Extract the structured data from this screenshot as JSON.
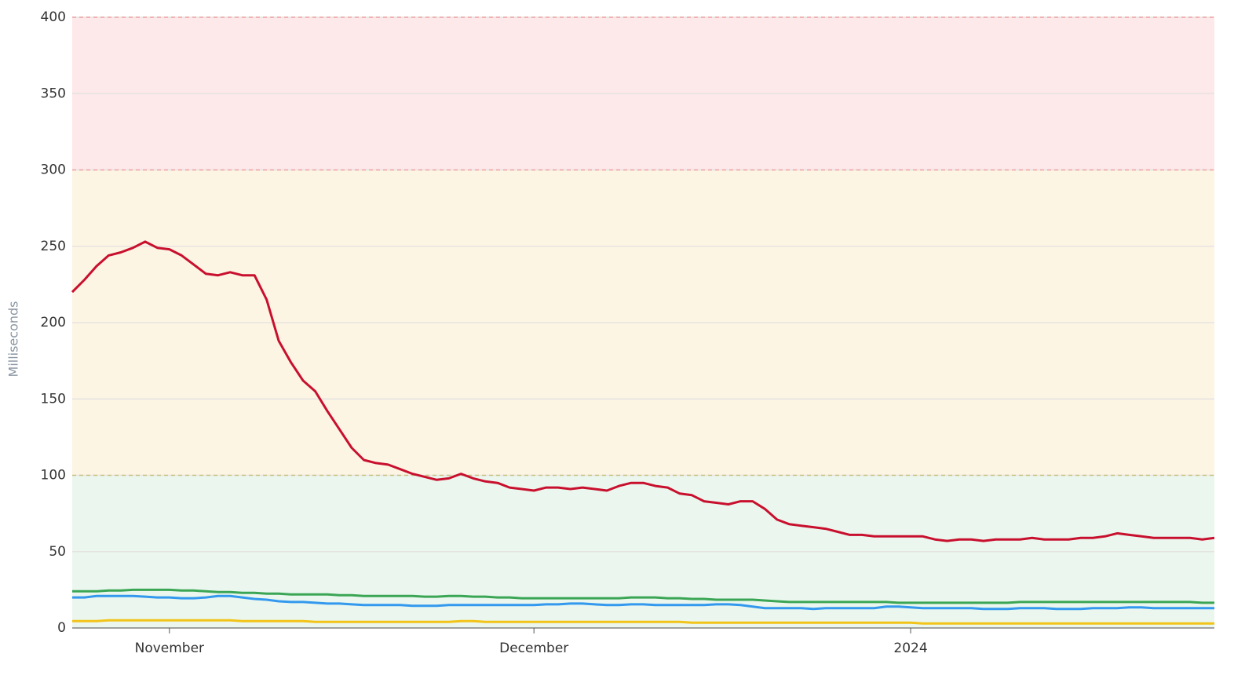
{
  "chart_data": {
    "type": "line",
    "y_label": "Milliseconds",
    "categories": [
      null,
      null,
      null,
      null,
      null,
      null,
      null,
      null,
      "November",
      null,
      null,
      null,
      null,
      null,
      null,
      null,
      null,
      null,
      null,
      null,
      null,
      null,
      null,
      null,
      null,
      null,
      null,
      null,
      null,
      null,
      null,
      null,
      null,
      null,
      null,
      null,
      null,
      null,
      "December",
      null,
      null,
      null,
      null,
      null,
      null,
      null,
      null,
      null,
      null,
      null,
      null,
      null,
      null,
      null,
      null,
      null,
      null,
      null,
      null,
      null,
      null,
      null,
      null,
      null,
      null,
      null,
      null,
      null,
      null,
      "2024",
      null,
      null,
      null,
      null,
      null,
      null,
      null,
      null,
      null,
      null,
      null,
      null,
      null,
      null,
      null,
      null,
      null,
      null,
      null,
      null,
      null,
      null,
      null,
      null,
      null
    ],
    "series": [
      {
        "color": "#c8102e",
        "values": [
          220,
          228,
          237,
          244,
          246,
          249,
          253,
          249,
          248,
          244,
          238,
          232,
          231,
          233,
          231,
          231,
          215,
          188,
          174,
          162,
          155,
          142,
          130,
          118,
          110,
          108,
          107,
          104,
          101,
          99,
          97,
          98,
          101,
          98,
          96,
          95,
          92,
          91,
          90,
          92,
          92,
          91,
          92,
          91,
          90,
          93,
          95,
          95,
          93,
          92,
          88,
          87,
          83,
          82,
          81,
          83,
          83,
          78,
          71,
          68,
          67,
          66,
          65,
          63,
          61,
          61,
          60,
          60,
          60,
          60,
          60,
          58,
          57,
          58,
          58,
          57,
          58,
          58,
          58,
          59,
          58,
          58,
          58,
          59,
          59,
          60,
          62,
          61,
          60,
          59,
          59,
          59,
          59,
          58,
          59
        ]
      },
      {
        "color": "#3aa655",
        "values": [
          24,
          24,
          24,
          24.5,
          24.5,
          25,
          25,
          25,
          25,
          24.5,
          24.5,
          24,
          23.5,
          23.5,
          23,
          23,
          22.5,
          22.5,
          22,
          22,
          22,
          22,
          21.5,
          21.5,
          21,
          21,
          21,
          21,
          21,
          20.5,
          20.5,
          21,
          21,
          20.5,
          20.5,
          20,
          20,
          19.5,
          19.5,
          19.5,
          19.5,
          19.5,
          19.5,
          19.5,
          19.5,
          19.5,
          20,
          20,
          20,
          19.5,
          19.5,
          19,
          19,
          18.5,
          18.5,
          18.5,
          18.5,
          18,
          17.5,
          17,
          17,
          17,
          17,
          17,
          17,
          17,
          17,
          17,
          16.5,
          16.5,
          16.5,
          16.5,
          16.5,
          16.5,
          16.5,
          16.5,
          16.5,
          16.5,
          17,
          17,
          17,
          17,
          17,
          17,
          17,
          17,
          17,
          17,
          17,
          17,
          17,
          17,
          17,
          16.5,
          16.5
        ]
      },
      {
        "color": "#3399ee",
        "values": [
          20,
          20,
          21,
          21,
          21,
          21,
          20.5,
          20,
          20,
          19.5,
          19.5,
          20,
          21,
          21,
          20,
          19,
          18.5,
          17.5,
          17,
          17,
          16.5,
          16,
          16,
          15.5,
          15,
          15,
          15,
          15,
          14.5,
          14.5,
          14.5,
          15,
          15,
          15,
          15,
          15,
          15,
          15,
          15,
          15.5,
          15.5,
          16,
          16,
          15.5,
          15,
          15,
          15.5,
          15.5,
          15,
          15,
          15,
          15,
          15,
          15.5,
          15.5,
          15,
          14,
          13,
          13,
          13,
          13,
          12.5,
          13,
          13,
          13,
          13,
          13,
          14,
          14,
          13.5,
          13,
          13,
          13,
          13,
          13,
          12.5,
          12.5,
          12.5,
          13,
          13,
          13,
          12.5,
          12.5,
          12.5,
          13,
          13,
          13,
          13.5,
          13.5,
          13,
          13,
          13,
          13,
          13,
          13
        ]
      },
      {
        "color": "#f2c318",
        "values": [
          4.5,
          4.5,
          4.5,
          5,
          5,
          5,
          5,
          5,
          5,
          5,
          5,
          5,
          5,
          5,
          4.5,
          4.5,
          4.5,
          4.5,
          4.5,
          4.5,
          4,
          4,
          4,
          4,
          4,
          4,
          4,
          4,
          4,
          4,
          4,
          4,
          4.5,
          4.5,
          4,
          4,
          4,
          4,
          4,
          4,
          4,
          4,
          4,
          4,
          4,
          4,
          4,
          4,
          4,
          4,
          4,
          3.5,
          3.5,
          3.5,
          3.5,
          3.5,
          3.5,
          3.5,
          3.5,
          3.5,
          3.5,
          3.5,
          3.5,
          3.5,
          3.5,
          3.5,
          3.5,
          3.5,
          3.5,
          3.5,
          3,
          3,
          3,
          3,
          3,
          3,
          3,
          3,
          3,
          3,
          3,
          3,
          3,
          3,
          3,
          3,
          3,
          3,
          3,
          3,
          3,
          3,
          3,
          3,
          3
        ]
      }
    ],
    "bands": [
      {
        "from": 0,
        "to": 100,
        "color": "#ebf7ee",
        "line_color": "#c8c080"
      },
      {
        "from": 100,
        "to": 300,
        "color": "#fdf5e4",
        "line_color": "#f0a0a0"
      },
      {
        "from": 300,
        "to": 400,
        "color": "#fde8ea",
        "line_color": "#f0a0a0"
      }
    ],
    "ylim": [
      0,
      400
    ],
    "yticks": [
      0,
      50,
      100,
      150,
      200,
      250,
      300,
      350,
      400
    ],
    "grid": true
  }
}
